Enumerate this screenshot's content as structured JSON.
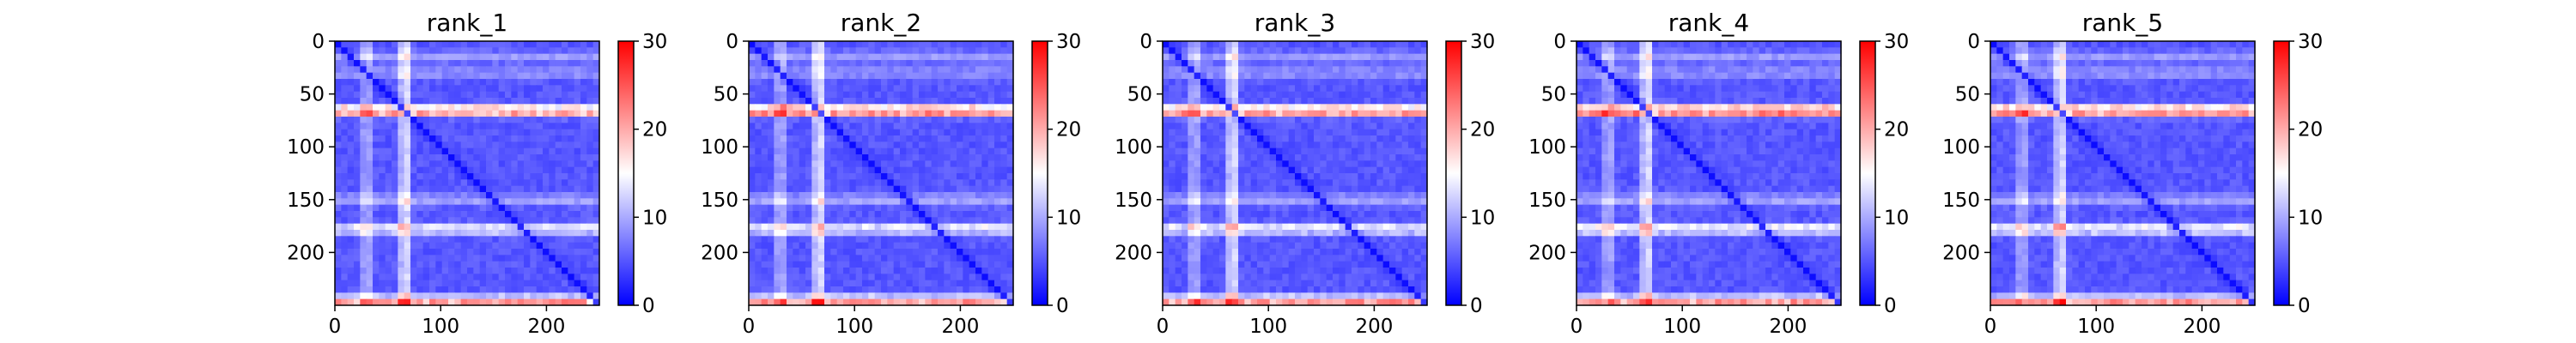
{
  "chart_data": [
    {
      "type": "heatmap",
      "title": "rank_1",
      "x_ticks": [
        0,
        100,
        200
      ],
      "y_ticks": [
        0,
        50,
        100,
        150,
        200
      ],
      "xlim": [
        0,
        250
      ],
      "ylim": [
        250,
        0
      ],
      "colormap": "bwr",
      "vmin": 0,
      "vmax": 30,
      "colorbar_ticks": [
        0,
        10,
        20,
        30
      ],
      "features": {
        "background_level": 4,
        "diagonal": "low",
        "hot_bands_y": [
          {
            "y": 66,
            "level": 24
          },
          {
            "y": 178,
            "level": 15
          },
          {
            "y": 245,
            "level": 26
          }
        ],
        "bright_columns_x": [
          {
            "x": 30,
            "level": 10
          },
          {
            "x": 66,
            "level": 14
          }
        ],
        "light_bands_y": [
          {
            "y": 15,
            "level": 8
          },
          {
            "y": 30,
            "level": 8
          },
          {
            "y": 150,
            "level": 9
          }
        ]
      }
    },
    {
      "type": "heatmap",
      "title": "rank_2",
      "x_ticks": [
        0,
        100,
        200
      ],
      "y_ticks": [
        0,
        50,
        100,
        150,
        200
      ],
      "xlim": [
        0,
        250
      ],
      "ylim": [
        250,
        0
      ],
      "colormap": "bwr",
      "vmin": 0,
      "vmax": 30,
      "colorbar_ticks": [
        0,
        10,
        20,
        30
      ],
      "features": {
        "background_level": 4,
        "diagonal": "low",
        "hot_bands_y": [
          {
            "y": 66,
            "level": 26
          },
          {
            "y": 178,
            "level": 15
          },
          {
            "y": 245,
            "level": 26
          }
        ],
        "bright_columns_x": [
          {
            "x": 30,
            "level": 10
          },
          {
            "x": 66,
            "level": 14
          }
        ],
        "light_bands_y": [
          {
            "y": 15,
            "level": 8
          },
          {
            "y": 30,
            "level": 8
          },
          {
            "y": 150,
            "level": 9
          }
        ]
      }
    },
    {
      "type": "heatmap",
      "title": "rank_3",
      "x_ticks": [
        0,
        100,
        200
      ],
      "y_ticks": [
        0,
        50,
        100,
        150,
        200
      ],
      "xlim": [
        0,
        250
      ],
      "ylim": [
        250,
        0
      ],
      "colormap": "bwr",
      "vmin": 0,
      "vmax": 30,
      "colorbar_ticks": [
        0,
        10,
        20,
        30
      ],
      "features": {
        "background_level": 4,
        "diagonal": "low",
        "hot_bands_y": [
          {
            "y": 66,
            "level": 25
          },
          {
            "y": 178,
            "level": 15
          },
          {
            "y": 245,
            "level": 26
          }
        ],
        "bright_columns_x": [
          {
            "x": 30,
            "level": 10
          },
          {
            "x": 66,
            "level": 14
          }
        ],
        "light_bands_y": [
          {
            "y": 15,
            "level": 8
          },
          {
            "y": 30,
            "level": 8
          },
          {
            "y": 150,
            "level": 9
          }
        ]
      }
    },
    {
      "type": "heatmap",
      "title": "rank_4",
      "x_ticks": [
        0,
        100,
        200
      ],
      "y_ticks": [
        0,
        50,
        100,
        150,
        200
      ],
      "xlim": [
        0,
        250
      ],
      "ylim": [
        250,
        0
      ],
      "colormap": "bwr",
      "vmin": 0,
      "vmax": 30,
      "colorbar_ticks": [
        0,
        10,
        20,
        30
      ],
      "features": {
        "background_level": 4,
        "diagonal": "low",
        "hot_bands_y": [
          {
            "y": 66,
            "level": 27
          },
          {
            "y": 178,
            "level": 16
          },
          {
            "y": 245,
            "level": 26
          }
        ],
        "bright_columns_x": [
          {
            "x": 30,
            "level": 10
          },
          {
            "x": 66,
            "level": 14
          }
        ],
        "light_bands_y": [
          {
            "y": 15,
            "level": 8
          },
          {
            "y": 30,
            "level": 8
          },
          {
            "y": 150,
            "level": 9
          }
        ]
      }
    },
    {
      "type": "heatmap",
      "title": "rank_5",
      "x_ticks": [
        0,
        100,
        200
      ],
      "y_ticks": [
        0,
        50,
        100,
        150,
        200
      ],
      "xlim": [
        0,
        250
      ],
      "ylim": [
        250,
        0
      ],
      "colormap": "bwr",
      "vmin": 0,
      "vmax": 30,
      "colorbar_ticks": [
        0,
        10,
        20,
        30
      ],
      "features": {
        "background_level": 4,
        "diagonal": "low",
        "hot_bands_y": [
          {
            "y": 66,
            "level": 25
          },
          {
            "y": 178,
            "level": 16
          },
          {
            "y": 245,
            "level": 26
          }
        ],
        "bright_columns_x": [
          {
            "x": 30,
            "level": 10
          },
          {
            "x": 66,
            "level": 14
          }
        ],
        "light_bands_y": [
          {
            "y": 15,
            "level": 8
          },
          {
            "y": 30,
            "level": 8
          },
          {
            "y": 150,
            "level": 9
          }
        ]
      }
    }
  ]
}
